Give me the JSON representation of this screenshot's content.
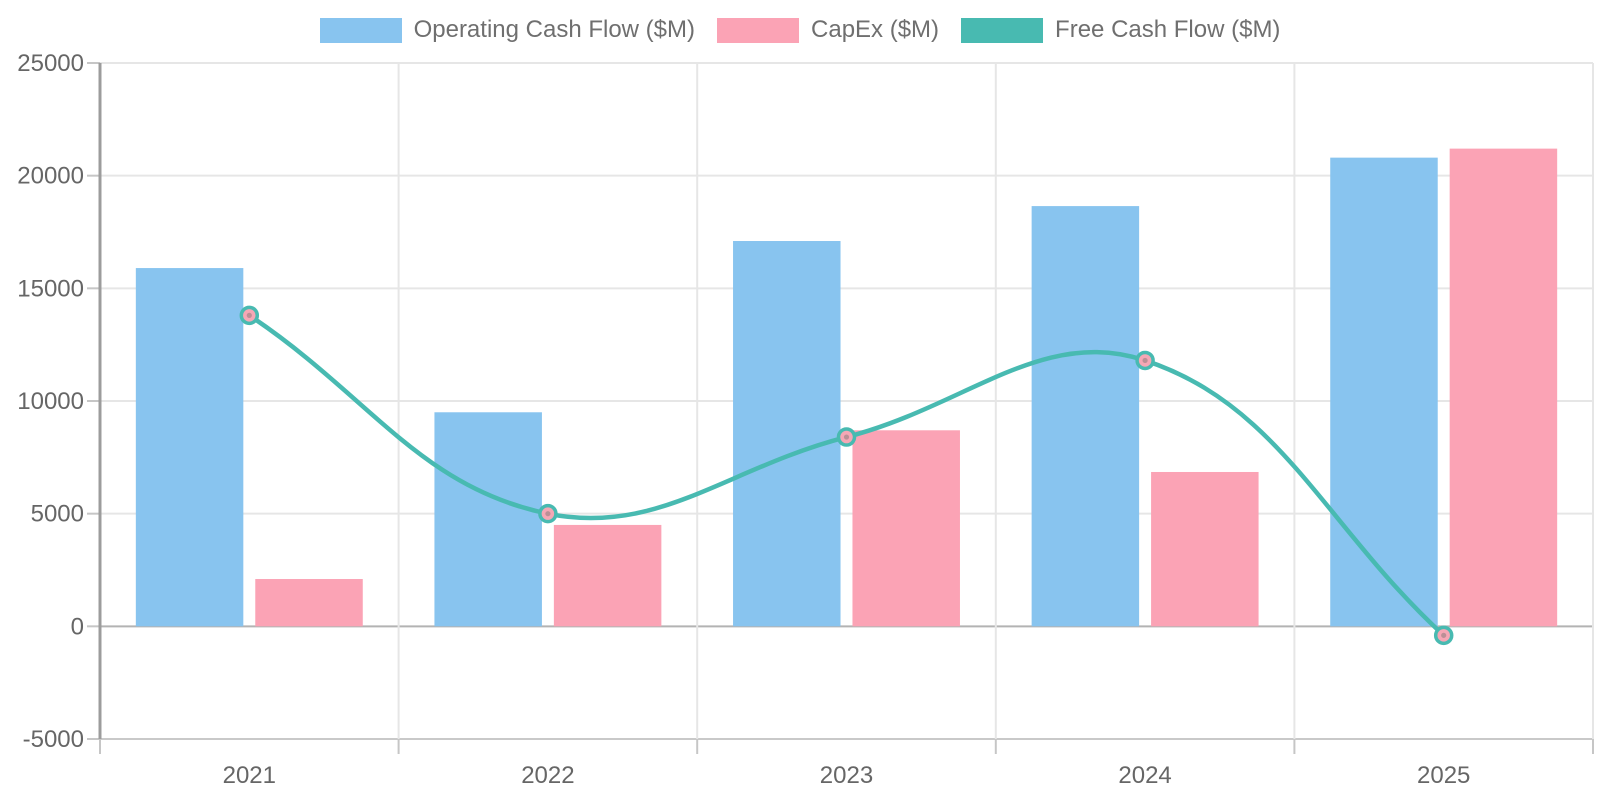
{
  "chart_data": {
    "type": "combo",
    "categories": [
      "2021",
      "2022",
      "2023",
      "2024",
      "2025"
    ],
    "series": [
      {
        "name": "Operating Cash Flow ($M)",
        "kind": "bar",
        "color": "#88c4ef",
        "values": [
          15900,
          9500,
          17100,
          18650,
          20800
        ]
      },
      {
        "name": "CapEx ($M)",
        "kind": "bar",
        "color": "#fba3b5",
        "values": [
          2100,
          4500,
          8700,
          6850,
          21200
        ]
      },
      {
        "name": "Free Cash Flow ($M)",
        "kind": "line",
        "color": "#48bab1",
        "point_fill": "#f5a7b5",
        "point_core": "#bb8f96",
        "values": [
          13800,
          5000,
          8400,
          11800,
          -400
        ]
      }
    ],
    "ylim": [
      -5000,
      25000
    ],
    "ytick_step": 5000,
    "yticks": [
      "-5000",
      "0",
      "5000",
      "10000",
      "15000",
      "20000",
      "25000"
    ],
    "grid": true,
    "legend_position": "top",
    "line_tension": 0.4,
    "axis_text_color": "#666666",
    "legend_text_color": "#6f6f6f",
    "grid_color": "#e6e6e6",
    "zero_line_color": "#b3b3b3",
    "x_axis_border_color": "#c9c9c9",
    "y_axis_border_color": "#9c9c9c",
    "tick_color": "#c6c6c6"
  }
}
